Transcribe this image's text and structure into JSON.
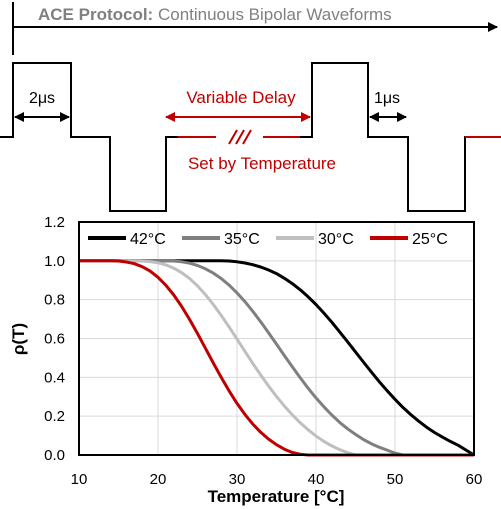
{
  "header": {
    "title_bold": "ACE Protocol:",
    "title_rest": " Continuous Bipolar Waveforms"
  },
  "waveform": {
    "pulse_width_label": "2μs",
    "interphase_label": "1μs",
    "delay_label": "Variable Delay",
    "delay_note": "Set by Temperature",
    "colors": {
      "waveform": "#000000",
      "delay": "#c00000",
      "title": "#808080"
    }
  },
  "chart_data": {
    "type": "line",
    "xlabel": "Temperature [°C]",
    "ylabel": "ρ(T)",
    "xlim": [
      10,
      60
    ],
    "ylim": [
      0,
      1.2
    ],
    "x_ticks": [
      10,
      20,
      30,
      40,
      50,
      60
    ],
    "y_ticks": [
      "0.0",
      "0.2",
      "0.4",
      "0.6",
      "0.8",
      "1.0",
      "1.2"
    ],
    "grid": true,
    "legend_position": "top",
    "x": [
      10,
      11,
      12,
      13,
      14,
      15,
      16,
      17,
      18,
      19,
      20,
      21,
      22,
      23,
      24,
      25,
      26,
      27,
      28,
      29,
      30,
      31,
      32,
      33,
      34,
      35,
      36,
      37,
      38,
      39,
      40,
      41,
      42,
      43,
      44,
      45,
      46,
      47,
      48,
      49,
      50,
      51,
      52,
      53,
      54,
      55,
      56,
      57,
      58,
      59,
      60
    ],
    "series": [
      {
        "name": "42°C",
        "color": "#000000",
        "values": [
          1,
          1,
          1,
          1,
          1,
          1,
          1,
          1,
          1,
          1,
          1,
          1,
          1,
          1,
          1,
          1,
          1,
          1,
          1,
          0.999,
          0.995,
          0.989,
          0.98,
          0.968,
          0.953,
          0.934,
          0.91,
          0.883,
          0.851,
          0.815,
          0.775,
          0.731,
          0.684,
          0.634,
          0.583,
          0.531,
          0.479,
          0.428,
          0.378,
          0.331,
          0.287,
          0.245,
          0.208,
          0.174,
          0.143,
          0.116,
          0.092,
          0.07,
          0.05,
          0.025,
          0
        ]
      },
      {
        "name": "35°C",
        "color": "#7f7f7f",
        "values": [
          1,
          1,
          1,
          1,
          1,
          1,
          1,
          1,
          1,
          1,
          1,
          1,
          0.999,
          0.995,
          0.988,
          0.976,
          0.959,
          0.937,
          0.909,
          0.875,
          0.835,
          0.79,
          0.74,
          0.686,
          0.629,
          0.571,
          0.512,
          0.454,
          0.398,
          0.344,
          0.294,
          0.248,
          0.206,
          0.168,
          0.135,
          0.106,
          0.08,
          0.058,
          0.04,
          0.025,
          0.01,
          0,
          0,
          0,
          0,
          0,
          0,
          0,
          0,
          0,
          0
        ]
      },
      {
        "name": "30°C",
        "color": "#bfbfbf",
        "values": [
          1,
          1,
          1,
          1,
          1,
          1,
          1,
          1,
          0.999,
          0.996,
          0.99,
          0.979,
          0.962,
          0.939,
          0.909,
          0.871,
          0.826,
          0.775,
          0.719,
          0.659,
          0.597,
          0.534,
          0.472,
          0.412,
          0.355,
          0.302,
          0.252,
          0.207,
          0.166,
          0.13,
          0.098,
          0.07,
          0.047,
          0.028,
          0.012,
          0,
          0,
          0,
          0,
          0,
          0,
          0,
          0,
          0,
          0,
          0,
          0,
          0,
          0,
          0,
          0
        ]
      },
      {
        "name": "25°C",
        "color": "#c00000",
        "values": [
          1,
          1,
          1,
          1,
          1,
          0.999,
          0.994,
          0.985,
          0.97,
          0.947,
          0.915,
          0.874,
          0.824,
          0.765,
          0.698,
          0.626,
          0.55,
          0.474,
          0.4,
          0.33,
          0.266,
          0.209,
          0.159,
          0.117,
          0.082,
          0.053,
          0.03,
          0.013,
          0.004,
          0,
          0,
          0,
          0,
          0,
          0,
          0,
          0,
          0,
          0,
          0,
          0,
          0,
          0,
          0,
          0,
          0,
          0,
          0,
          0,
          0,
          0
        ]
      }
    ]
  }
}
